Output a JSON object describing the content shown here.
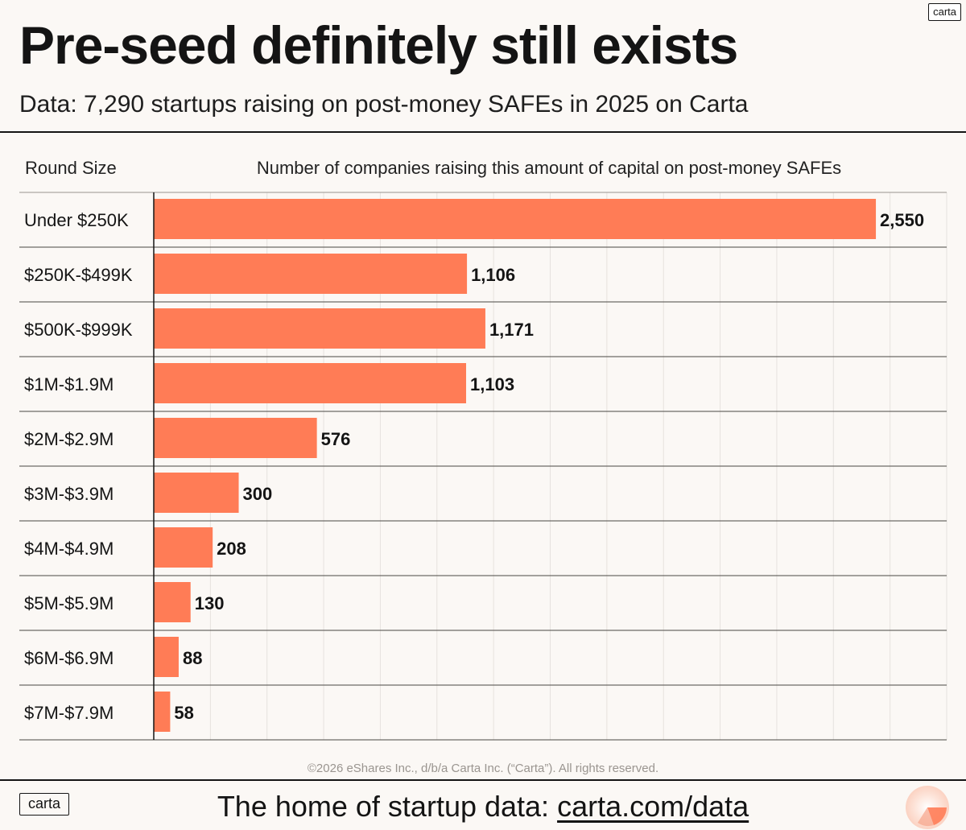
{
  "brand": {
    "name": "carta"
  },
  "header": {
    "title": "Pre-seed definitely still exists",
    "subtitle": "Data: 7,290 startups raising on post-money SAFEs in 2025 on Carta"
  },
  "footer": {
    "copyright": "©2026 eShares Inc., d/b/a Carta Inc. (“Carta”). All rights reserved.",
    "logo_text": "carta",
    "tagline_prefix": "The home of startup data: ",
    "link_text": "carta.com/data"
  },
  "colors": {
    "bar": "#ff7c56",
    "text": "#141414",
    "grid": "#e6e2de",
    "background": "#fbf8f5"
  },
  "chart_data": {
    "type": "bar",
    "orientation": "horizontal",
    "category_header": "Round Size",
    "value_header": "Number of companies raising this amount of capital on post-money SAFEs",
    "categories": [
      "Under $250K",
      "$250K-$499K",
      "$500K-$999K",
      "$1M-$1.9M",
      "$2M-$2.9M",
      "$3M-$3.9M",
      "$4M-$4.9M",
      "$5M-$5.9M",
      "$6M-$6.9M",
      "$7M-$7.9M"
    ],
    "values": [
      2550,
      1106,
      1171,
      1103,
      576,
      300,
      208,
      130,
      88,
      58
    ],
    "value_labels": [
      "2,550",
      "1,106",
      "1,171",
      "1,103",
      "576",
      "300",
      "208",
      "130",
      "88",
      "58"
    ],
    "xlim": [
      0,
      2800
    ],
    "grid_step": 200,
    "grid": true
  }
}
